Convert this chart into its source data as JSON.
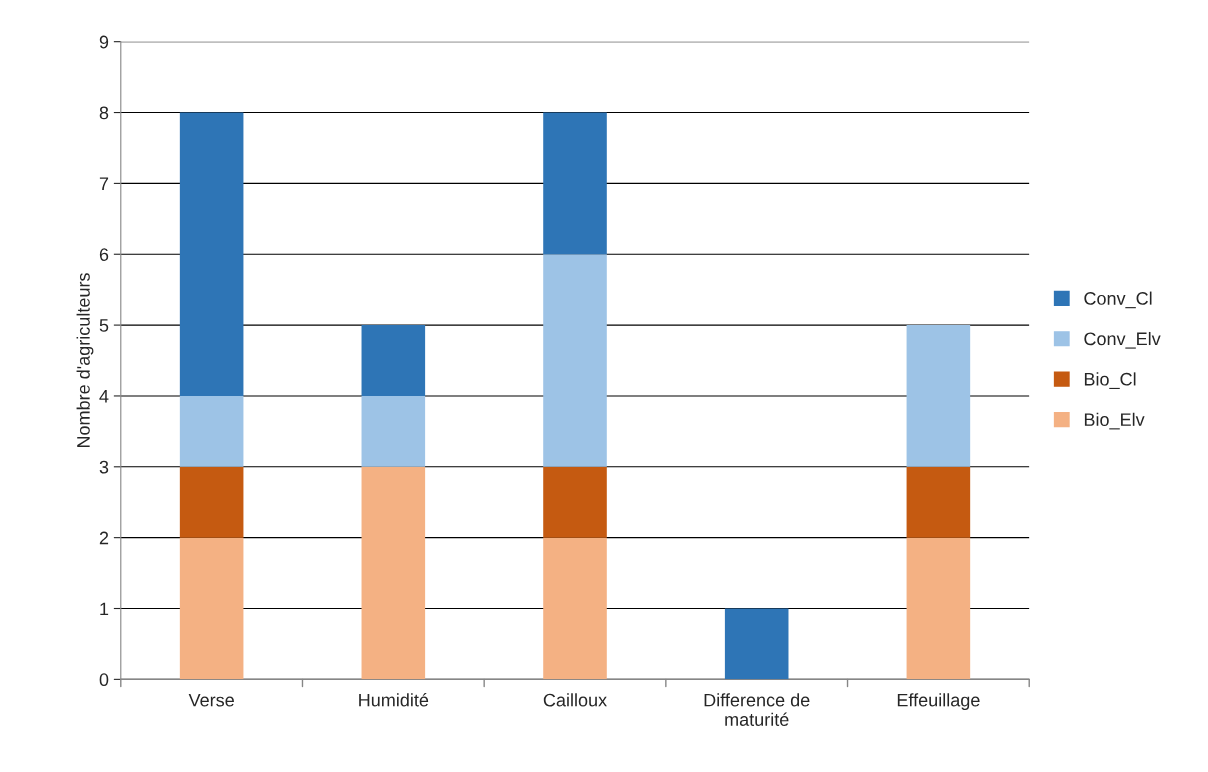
{
  "chart_data": {
    "type": "bar",
    "stacked": true,
    "ylabel": "Nombre d'agriculteurs",
    "categories": [
      "Verse",
      "Humidité",
      "Cailloux",
      "Difference de\nmaturité",
      "Effeuillage"
    ],
    "series": [
      {
        "name": "Bio_Elv",
        "color": "#f4b183",
        "values": [
          2,
          3,
          2,
          0,
          2
        ]
      },
      {
        "name": "Bio_Cl",
        "color": "#c55a11",
        "values": [
          1,
          0,
          1,
          0,
          1
        ]
      },
      {
        "name": "Conv_Elv",
        "color": "#9dc3e6",
        "values": [
          1,
          1,
          3,
          0,
          2
        ]
      },
      {
        "name": "Conv_Cl",
        "color": "#2e75b6",
        "values": [
          4,
          1,
          2,
          1,
          0
        ]
      }
    ],
    "ylim": [
      0,
      9
    ],
    "yticks": [
      0,
      1,
      2,
      3,
      4,
      5,
      6,
      7,
      8,
      9
    ],
    "grid": "y",
    "legend": "right"
  }
}
